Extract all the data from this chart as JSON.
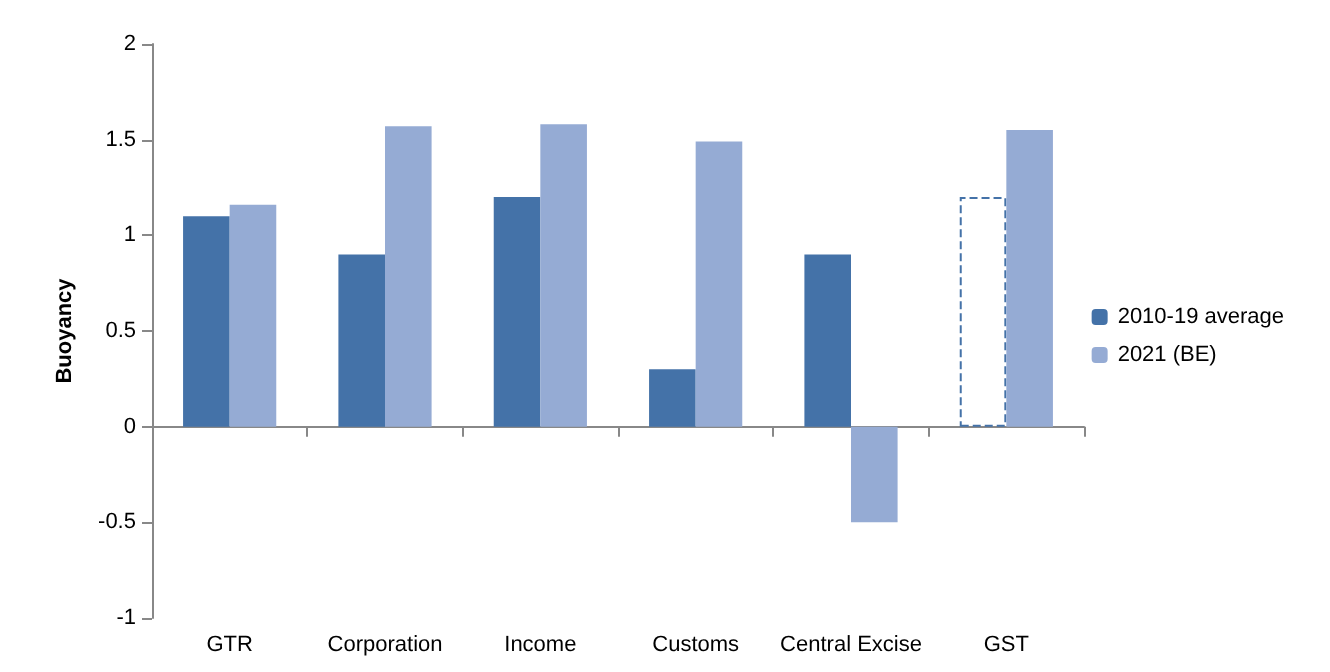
{
  "chart_data": {
    "type": "bar",
    "ylabel": "Buoyancy",
    "categories": [
      "GTR",
      "Corporation",
      "Income",
      "Customs",
      "Central Excise",
      "GST"
    ],
    "series": [
      {
        "name": "2010-19 average",
        "color": "#4472a8",
        "colors": [
          "#4472a8",
          "#4472a8",
          "#4472a8",
          "#4472a8",
          "#4472a8",
          "#ffffff"
        ],
        "values": [
          1.1,
          0.9,
          1.2,
          0.3,
          0.9,
          1.2
        ]
      },
      {
        "name": "2021 (BE)",
        "color": "#95abd4",
        "values": [
          1.16,
          1.57,
          1.58,
          1.49,
          -0.5,
          1.55
        ]
      }
    ],
    "ylim": [
      -1,
      2
    ],
    "yticks": [
      -1,
      -0.5,
      0,
      0.5,
      1,
      1.5,
      2
    ],
    "legend": "right"
  }
}
